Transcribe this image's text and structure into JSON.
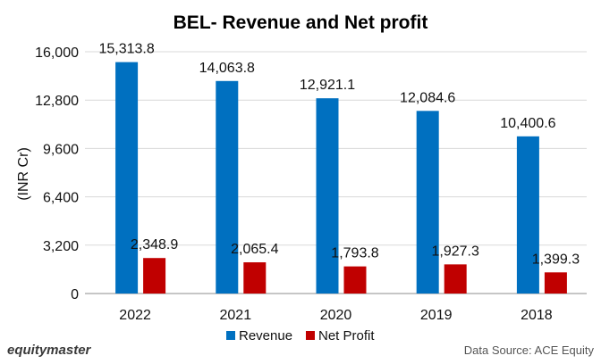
{
  "chart_data": {
    "type": "bar",
    "title": "BEL- Revenue and Net profit",
    "ylabel": "(INR Cr)",
    "xlabel": "",
    "categories": [
      "2022",
      "2021",
      "2020",
      "2019",
      "2018"
    ],
    "ylim": [
      0,
      16000
    ],
    "yticks": [
      0,
      3200,
      6400,
      9600,
      12800,
      16000
    ],
    "ytick_labels": [
      "0",
      "3,200",
      "6,400",
      "9,600",
      "12,800",
      "16,000"
    ],
    "series": [
      {
        "name": "Revenue",
        "color": "#0070c0",
        "values": [
          15313.8,
          14063.8,
          12921.1,
          12084.6,
          10400.6
        ],
        "labels": [
          "15,313.8",
          "14,063.8",
          "12,921.1",
          "12,084.6",
          "10,400.6"
        ]
      },
      {
        "name": "Net Profit",
        "color": "#c00000",
        "values": [
          2348.9,
          2065.4,
          1793.8,
          1927.3,
          1399.3
        ],
        "labels": [
          "2,348.9",
          "2,065.4",
          "1,793.8",
          "1,927.3",
          "1,399.3"
        ]
      }
    ],
    "legend_position": "bottom",
    "grid": true
  },
  "footer": {
    "brand": "equitymaster",
    "source": "Data Source: ACE Equity"
  }
}
